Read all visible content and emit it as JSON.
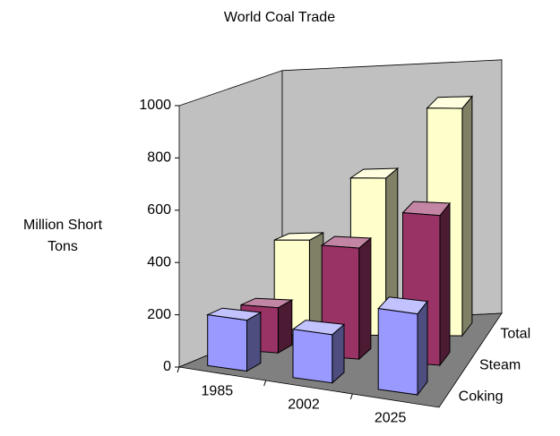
{
  "chart_data": {
    "type": "bar3d",
    "title": "World Coal Trade",
    "y_label": "Million Short Tons",
    "categories": [
      "1985",
      "2002",
      "2025"
    ],
    "series": [
      {
        "name": "Coking",
        "color": "#9999ff",
        "values": [
          195,
          185,
          310
        ]
      },
      {
        "name": "Steam",
        "color": "#993366",
        "values": [
          175,
          430,
          580
        ]
      },
      {
        "name": "Total",
        "color": "#ffffcc",
        "values": [
          370,
          615,
          890
        ]
      }
    ],
    "ylim": [
      0,
      1000
    ],
    "yticks": [
      0,
      200,
      400,
      600,
      800,
      1000
    ]
  }
}
